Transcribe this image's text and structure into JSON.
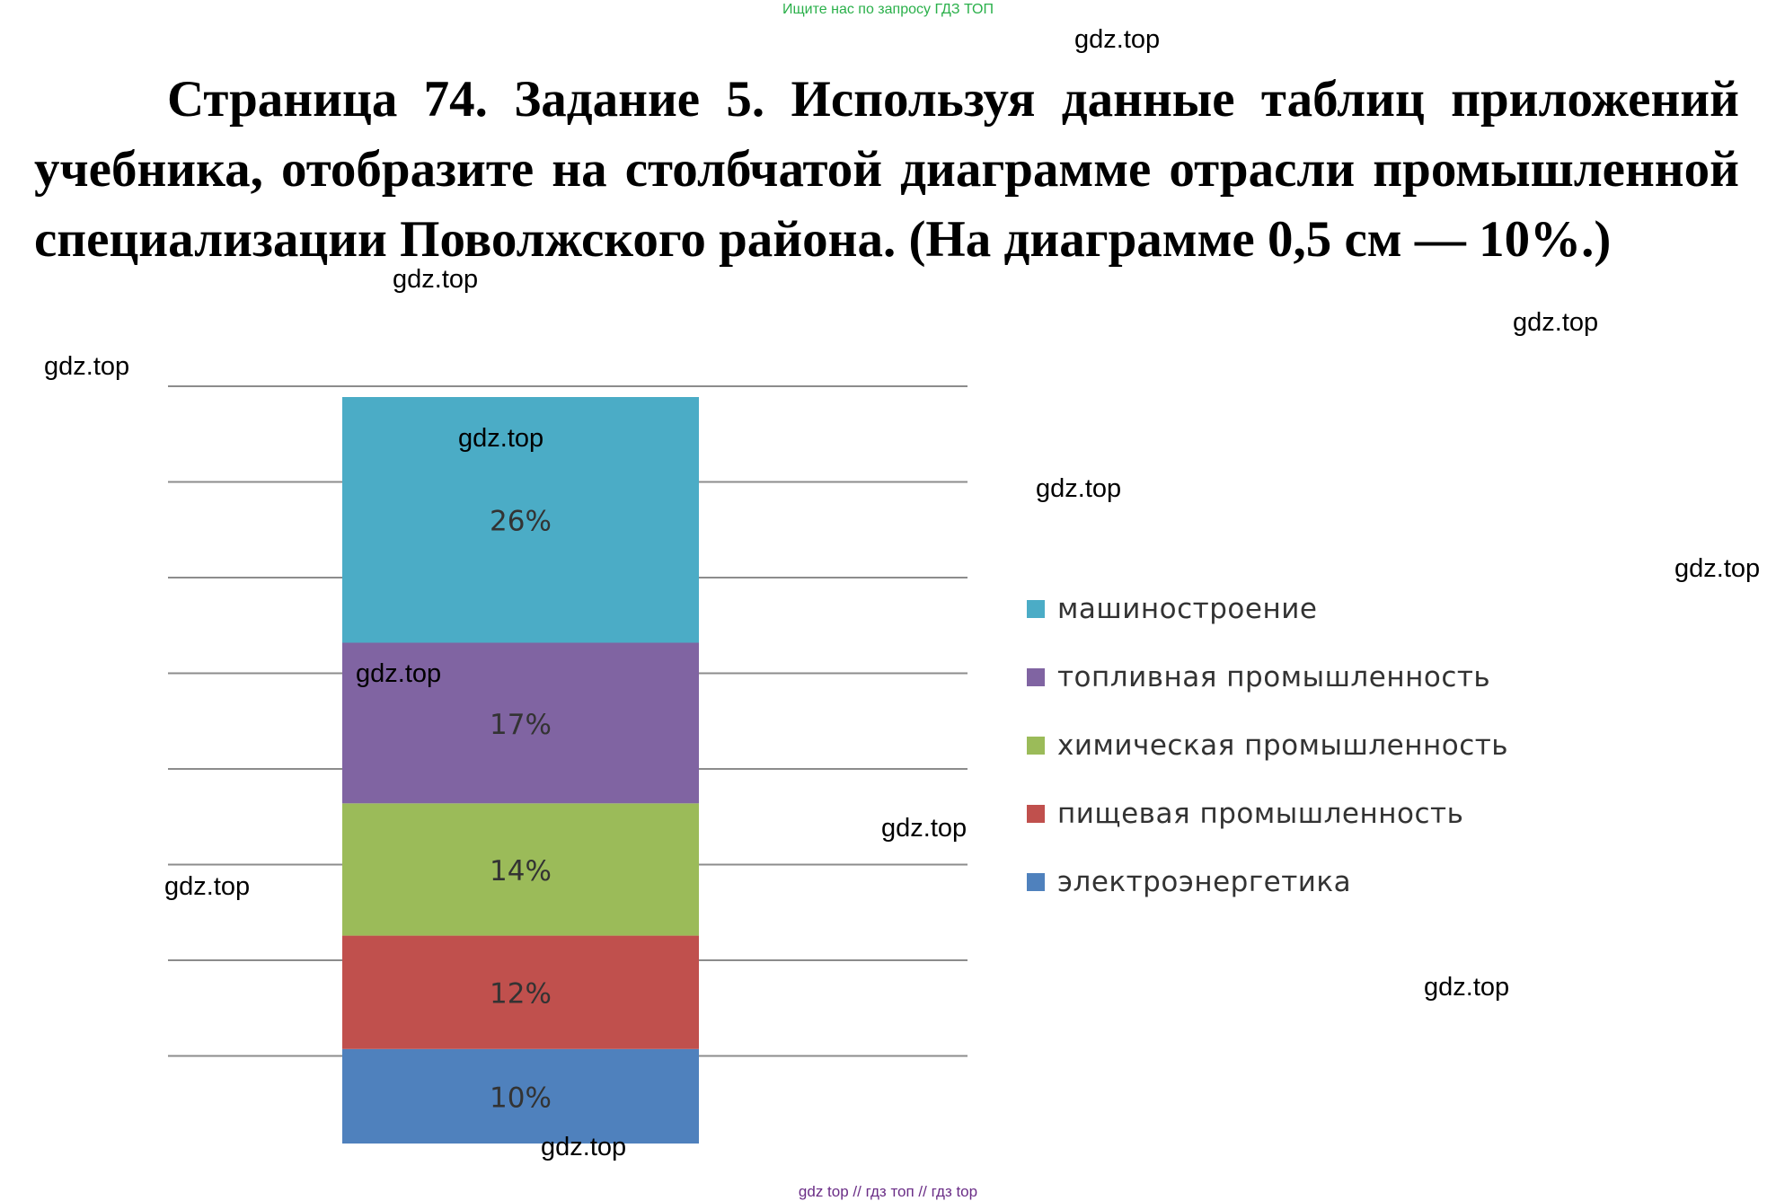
{
  "header": {
    "note": "Ищите нас по запросу ГДЗ ТОП",
    "note_color": "#2ab04a"
  },
  "task": {
    "text": "Страница 74. Задание 5. Используя данные таблиц приложений учебника, отобразите на столбчатой диаграмме отрасли промышленной специализации Поволжского района. (На диаграмме 0,5 см — 10%.)"
  },
  "watermark": "gdz.top",
  "footer": {
    "note": "gdz top // гдз топ // гдз top",
    "note_color": "#6a2d86"
  },
  "chart_data": {
    "type": "bar",
    "stacked": true,
    "unit": "%",
    "categories": [
      ""
    ],
    "grid": true,
    "legend_position": "right",
    "series": [
      {
        "name": "электроэнергетика",
        "values": [
          10
        ],
        "label": "10%",
        "color": "#4f81bd"
      },
      {
        "name": "пищевая промышленность",
        "values": [
          12
        ],
        "label": "12%",
        "color": "#c0504d"
      },
      {
        "name": "химическая промышленность",
        "values": [
          14
        ],
        "label": "14%",
        "color": "#9bbb59"
      },
      {
        "name": "топливная промышленность",
        "values": [
          17
        ],
        "label": "17%",
        "color": "#8064a2"
      },
      {
        "name": "машиностроение",
        "values": [
          26
        ],
        "label": "26%",
        "color": "#4bacc6"
      }
    ],
    "legend_order": [
      {
        "name": "машиностроение",
        "color": "#4bacc6"
      },
      {
        "name": "топливная промышленность",
        "color": "#8064a2"
      },
      {
        "name": "химическая промышленность",
        "color": "#9bbb59"
      },
      {
        "name": "пищевая промышленность",
        "color": "#c0504d"
      },
      {
        "name": "электроэнергетика",
        "color": "#4f81bd"
      }
    ]
  }
}
